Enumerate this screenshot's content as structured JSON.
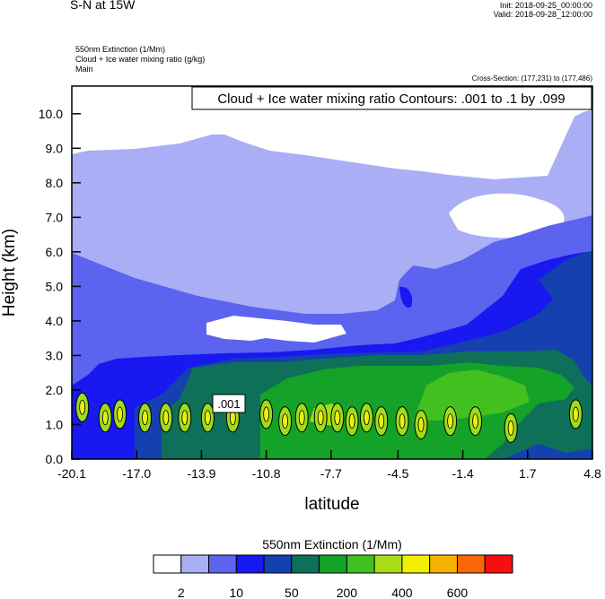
{
  "header": {
    "title": "S-N at 15W",
    "init": "Init: 2018-09-25_00:00:00",
    "valid": "Valid: 2018-09-28_12:00:00",
    "subtitle_lines": [
      "550nm Extinction   (1/Mm)",
      "Cloud + Ice water mixing ratio   (g/kg)",
      "Main"
    ],
    "cross_section": "Cross-Section: (177,231) to (177,486)"
  },
  "chart_data": {
    "type": "heatmap",
    "title": "",
    "annotation": "Cloud + Ice water mixing ratio Contours: .001 to .1 by .099",
    "contour_label": ".001",
    "xlabel": "latitude",
    "ylabel": "Height (km)",
    "xlim": [
      -20.1,
      4.8
    ],
    "ylim": [
      0.0,
      10.8
    ],
    "x_ticks": [
      "-20.1",
      "-17.0",
      "-13.9",
      "-10.8",
      "-7.7",
      "-4.5",
      "-1.4",
      "1.7",
      "4.8"
    ],
    "x_tick_values": [
      -20.1,
      -17.0,
      -13.9,
      -10.8,
      -7.7,
      -4.5,
      -1.4,
      1.7,
      4.8
    ],
    "y_ticks": [
      "0.0",
      "1.0",
      "2.0",
      "3.0",
      "4.0",
      "5.0",
      "6.0",
      "7.0",
      "8.0",
      "9.0",
      "10.0"
    ],
    "y_tick_values": [
      0,
      1,
      2,
      3,
      4,
      5,
      6,
      7,
      8,
      9,
      10
    ],
    "colorbar": {
      "title": "550nm Extinction  (1/Mm)",
      "colors": [
        "#ffffff",
        "#a9aef5",
        "#5b63ef",
        "#1818f0",
        "#1540b0",
        "#0e7058",
        "#14a228",
        "#42c020",
        "#a8dc18",
        "#f0f000",
        "#f7b200",
        "#f86808",
        "#f80e0e"
      ],
      "labels": [
        "2",
        "10",
        "50",
        "200",
        "400",
        "600"
      ],
      "label_positions": [
        1,
        3,
        5,
        7,
        9,
        11
      ]
    },
    "contour_cores": [
      {
        "lat": -19.6,
        "z": 1.5
      },
      {
        "lat": -18.5,
        "z": 1.2
      },
      {
        "lat": -17.8,
        "z": 1.3
      },
      {
        "lat": -16.6,
        "z": 1.2
      },
      {
        "lat": -15.6,
        "z": 1.2
      },
      {
        "lat": -14.7,
        "z": 1.2
      },
      {
        "lat": -13.6,
        "z": 1.2
      },
      {
        "lat": -12.4,
        "z": 1.2
      },
      {
        "lat": -10.8,
        "z": 1.3
      },
      {
        "lat": -9.9,
        "z": 1.1
      },
      {
        "lat": -9.1,
        "z": 1.2
      },
      {
        "lat": -8.2,
        "z": 1.2
      },
      {
        "lat": -7.4,
        "z": 1.2
      },
      {
        "lat": -6.7,
        "z": 1.1
      },
      {
        "lat": -6.0,
        "z": 1.2
      },
      {
        "lat": -5.3,
        "z": 1.1
      },
      {
        "lat": -4.3,
        "z": 1.1
      },
      {
        "lat": -3.4,
        "z": 1.0
      },
      {
        "lat": -2.0,
        "z": 1.1
      },
      {
        "lat": -0.8,
        "z": 1.1
      },
      {
        "lat": 0.9,
        "z": 0.9
      },
      {
        "lat": 4.0,
        "z": 1.3
      }
    ]
  }
}
